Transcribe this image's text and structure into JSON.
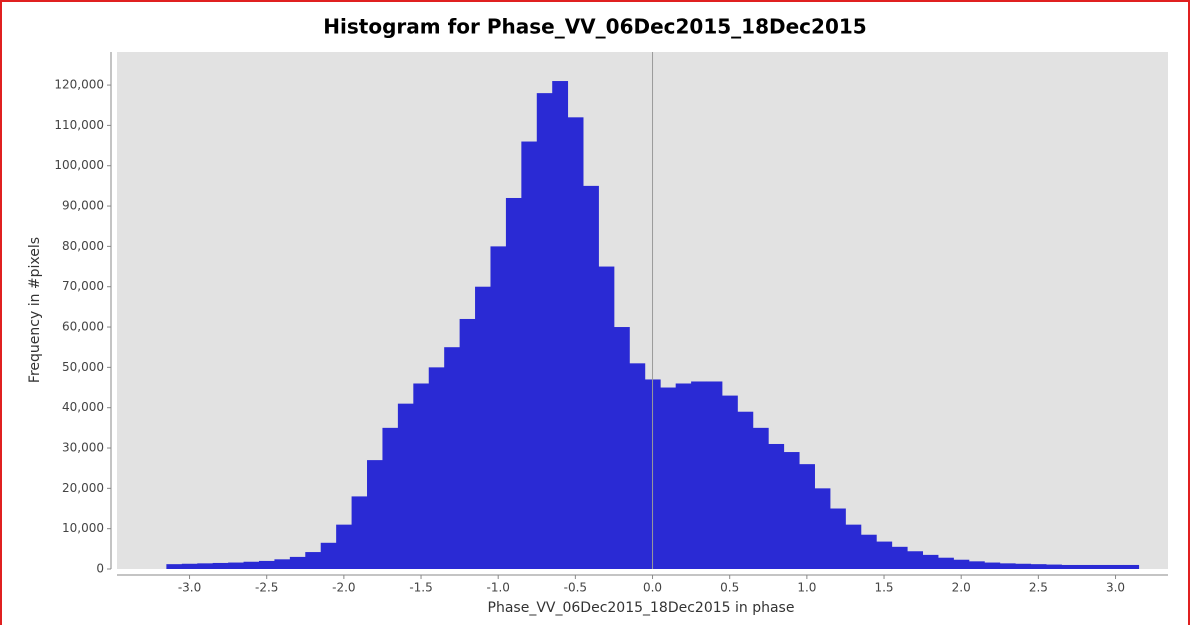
{
  "chart_data": {
    "type": "histogram",
    "title": "Histogram for Phase_VV_06Dec2015_18Dec2015",
    "x_label": "Phase_VV_06Dec2015_18Dec2015 in phase",
    "y_label": "Frequency in #pixels",
    "color": "#2a2ad4",
    "zero_line": true,
    "bins": [
      -3.15,
      -3.05,
      -2.95,
      -2.85,
      -2.75,
      -2.65,
      -2.55,
      -2.45,
      -2.35,
      -2.25,
      -2.15,
      -2.05,
      -1.95,
      -1.85,
      -1.75,
      -1.65,
      -1.55,
      -1.45,
      -1.35,
      -1.25,
      -1.15,
      -1.05,
      -0.95,
      -0.85,
      -0.75,
      -0.65,
      -0.55,
      -0.45,
      -0.35,
      -0.25,
      -0.15,
      -0.05,
      0.05,
      0.15,
      0.25,
      0.35,
      0.45,
      0.55,
      0.65,
      0.75,
      0.85,
      0.95,
      1.05,
      1.15,
      1.25,
      1.35,
      1.45,
      1.55,
      1.65,
      1.75,
      1.85,
      1.95,
      2.05,
      2.15,
      2.25,
      2.35,
      2.45,
      2.55,
      2.65,
      2.75,
      2.85,
      2.95,
      3.05,
      3.15
    ],
    "values": [
      1200,
      1300,
      1400,
      1500,
      1600,
      1800,
      2000,
      2400,
      3000,
      4200,
      6500,
      11000,
      18000,
      27000,
      35000,
      41000,
      46000,
      50000,
      55000,
      62000,
      70000,
      80000,
      92000,
      106000,
      118000,
      121000,
      112000,
      95000,
      75000,
      60000,
      51000,
      47000,
      45000,
      46000,
      46500,
      46500,
      43000,
      39000,
      35000,
      31000,
      29000,
      26000,
      20000,
      15000,
      11000,
      8500,
      6800,
      5500,
      4400,
      3500,
      2800,
      2300,
      1900,
      1600,
      1400,
      1300,
      1200,
      1100,
      1000,
      1000,
      1000,
      1000,
      1000
    ],
    "xlim": [
      -3.47,
      3.34
    ],
    "xticks": [
      {
        "value": -3.0,
        "label": "-3.0"
      },
      -2.5,
      {
        "value": -2.0,
        "label": "-2.0"
      },
      -1.5,
      {
        "value": -1.0,
        "label": "-1.0"
      },
      -0.5,
      {
        "value": 0,
        "label": "0.0"
      },
      0.5,
      {
        "value": 1.0,
        "label": "1.0"
      },
      1.5,
      {
        "value": 2.0,
        "label": "2.0"
      },
      2.5,
      {
        "value": 3.0,
        "label": "3.0"
      }
    ],
    "ylim": [
      0,
      128200
    ],
    "yticks": [
      0,
      {
        "value": 10000,
        "label": "10,000"
      },
      {
        "value": 20000,
        "label": "20,000"
      },
      {
        "value": 30000,
        "label": "30,000"
      },
      {
        "value": 40000,
        "label": "40,000"
      },
      {
        "value": 50000,
        "label": "50,000"
      },
      {
        "value": 60000,
        "label": "60,000"
      },
      {
        "value": 70000,
        "label": "70,000"
      },
      {
        "value": 80000,
        "label": "80,000"
      },
      {
        "value": 90000,
        "label": "90,000"
      },
      {
        "value": 100000,
        "label": "100,000"
      },
      {
        "value": 110000,
        "label": "110,000"
      },
      {
        "value": 120000,
        "label": "120,000"
      }
    ]
  }
}
